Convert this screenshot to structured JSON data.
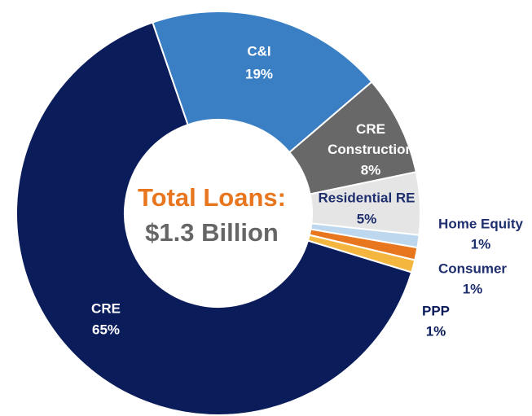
{
  "chart_data": {
    "type": "donut",
    "title": "Total Loans:",
    "subtitle": "$1.3 Billion",
    "categories": [
      "C&I",
      "CRE Construction",
      "Residential RE",
      "Home Equity",
      "Consumer",
      "PPP",
      "CRE"
    ],
    "values": [
      19,
      8,
      5,
      1,
      1,
      1,
      65
    ],
    "value_labels": [
      "19%",
      "8%",
      "5%",
      "1%",
      "1%",
      "1%",
      "65%"
    ],
    "colors": [
      "#3a7fc4",
      "#686868",
      "#e5e5e5",
      "#bdd7ee",
      "#e8761e",
      "#f4b63f",
      "#0b1c5a"
    ]
  }
}
